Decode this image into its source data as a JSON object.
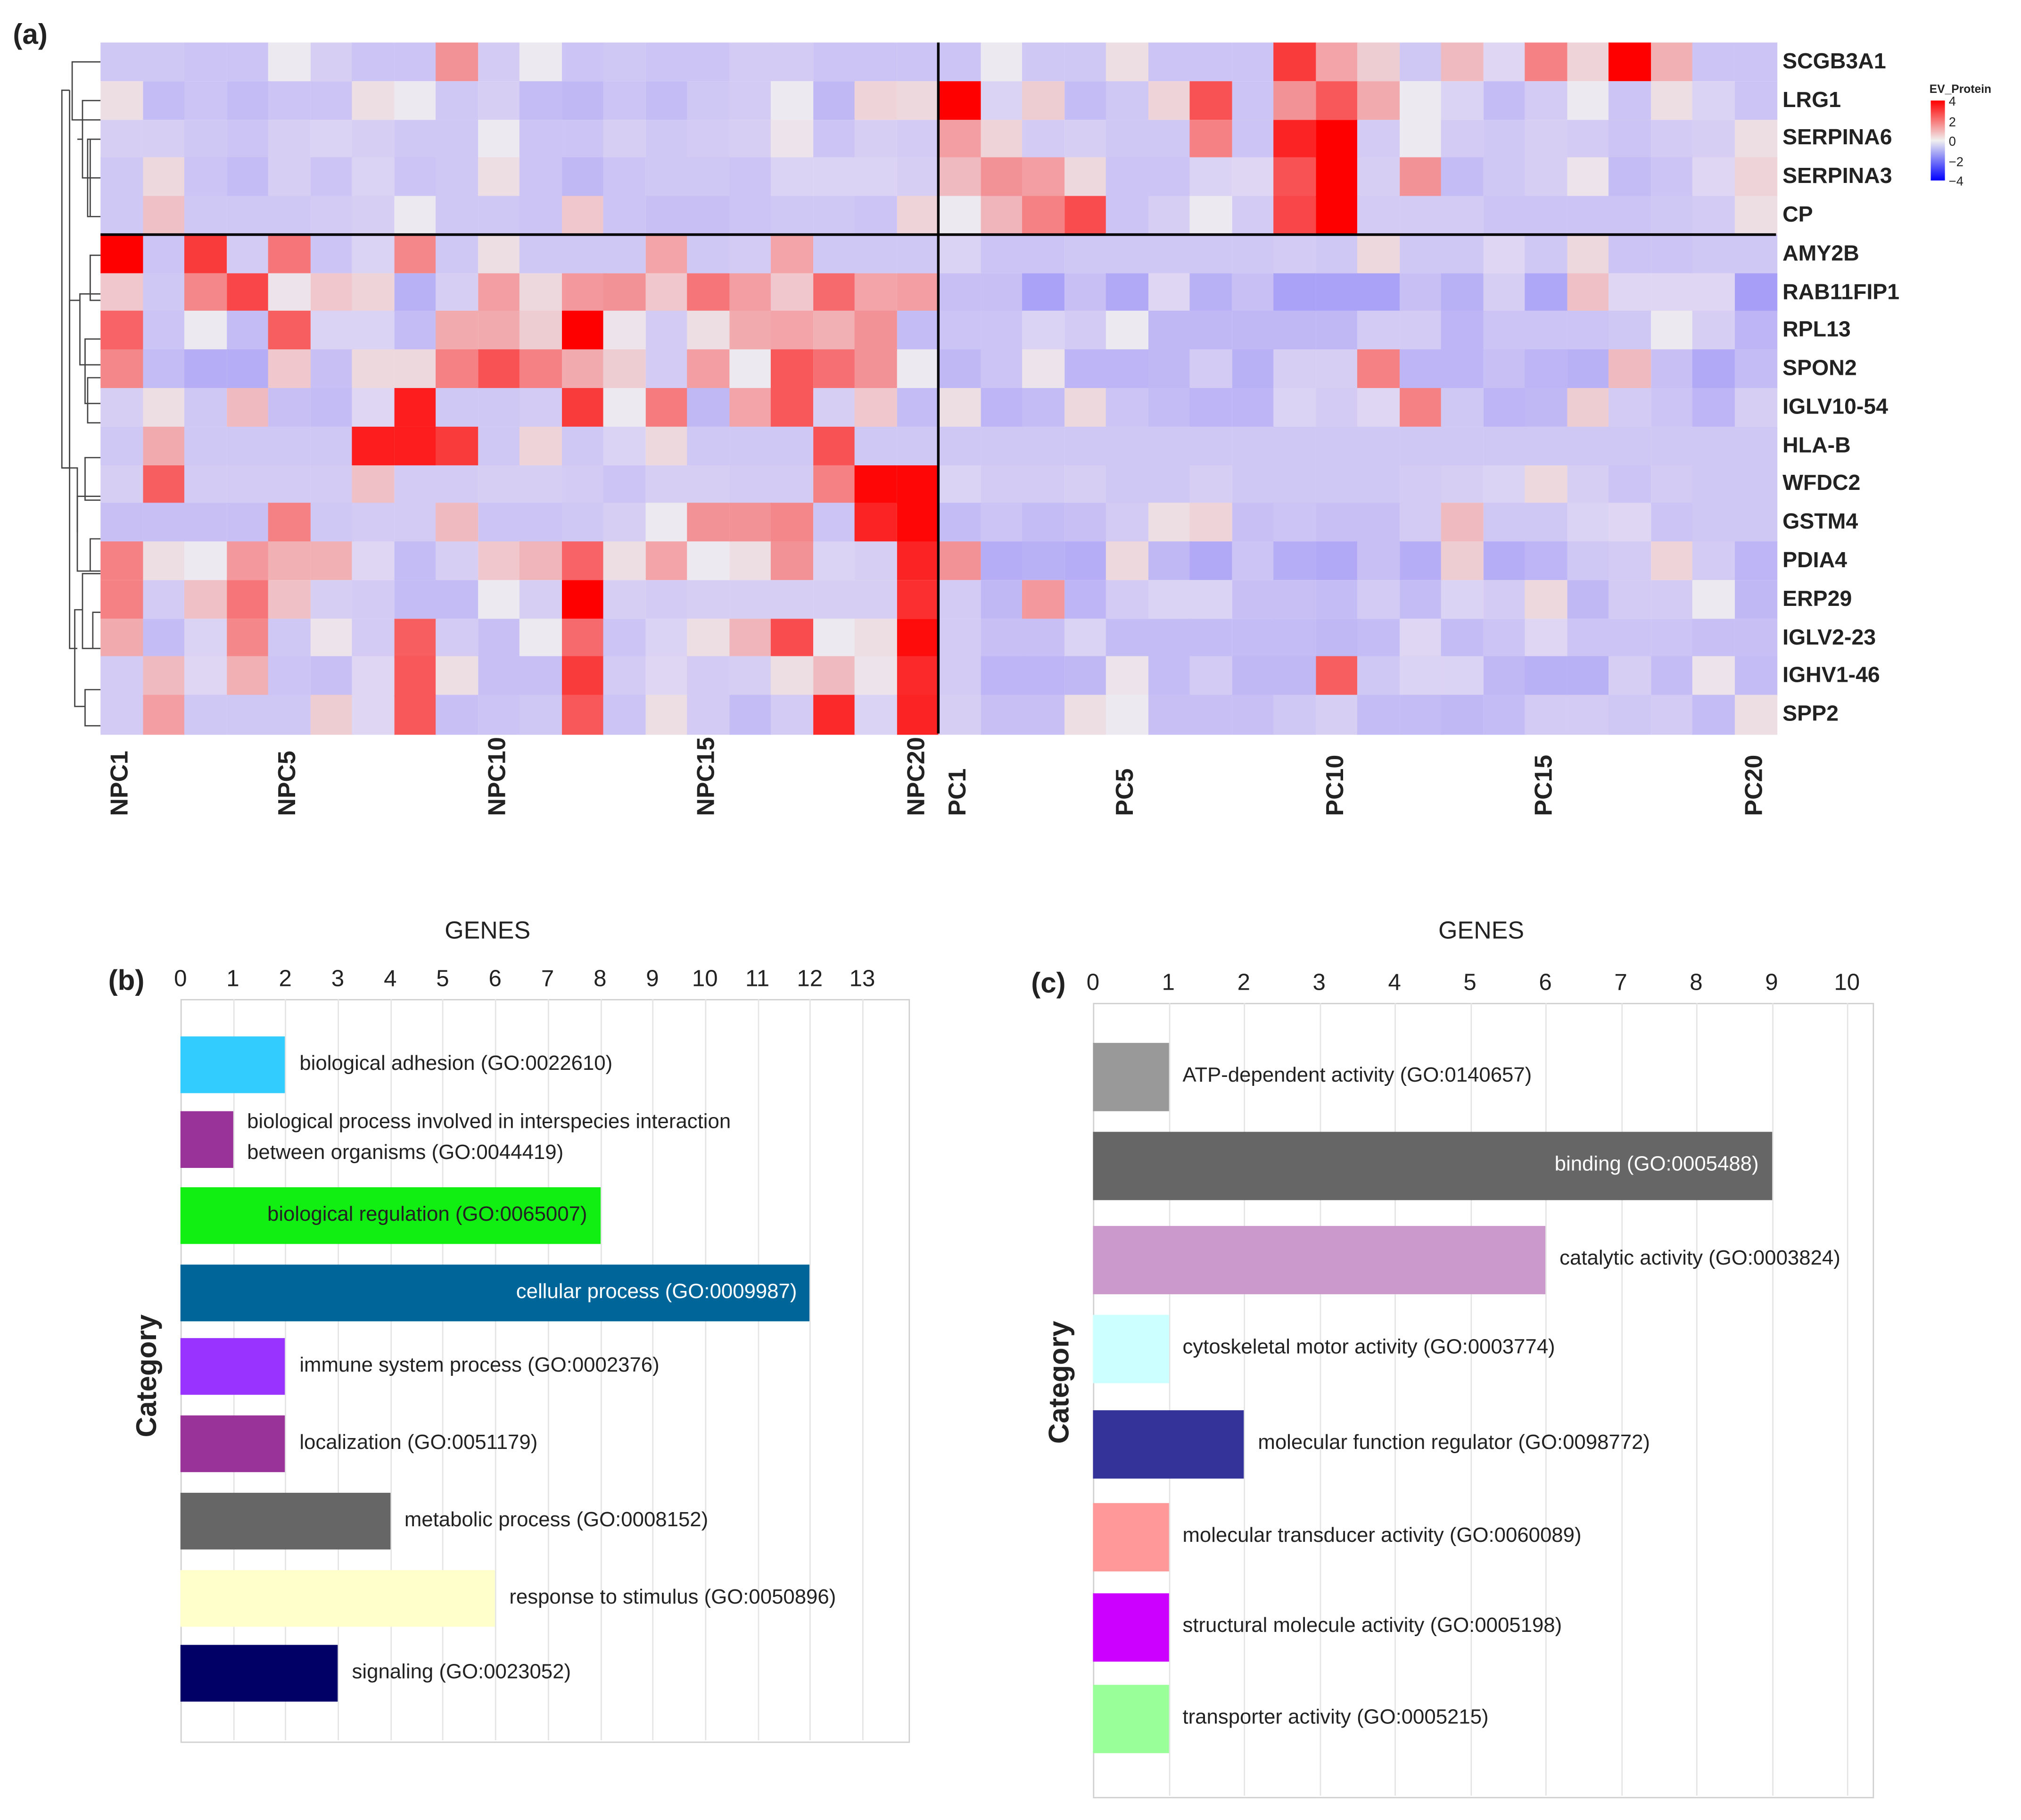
{
  "panels": {
    "a": "(a)",
    "b": "(b)",
    "c": "(c)"
  },
  "chart_data": [
    {
      "type": "heatmap",
      "title": "",
      "legend": {
        "title": "EV_Protein",
        "ticks": [
          "4",
          "2",
          "0",
          "−2",
          "−4"
        ],
        "range": [
          -4,
          4
        ],
        "colors": {
          "low": "#0000ff",
          "mid": "#f0f0f0",
          "high": "#ff0000"
        },
        "placement": "top-right"
      },
      "column_labels_shown": [
        "NPC1",
        "NPC5",
        "NPC10",
        "NPC15",
        "NPC20",
        "PC1",
        "PC5",
        "PC10",
        "PC15",
        "PC20"
      ],
      "column_label_indices": [
        0,
        4,
        9,
        14,
        19,
        20,
        24,
        29,
        34,
        39
      ],
      "columns": [
        "NPC1",
        "NPC2",
        "NPC3",
        "NPC4",
        "NPC5",
        "NPC6",
        "NPC7",
        "NPC8",
        "NPC9",
        "NPC10",
        "NPC11",
        "NPC12",
        "NPC13",
        "NPC14",
        "NPC15",
        "NPC16",
        "NPC17",
        "NPC18",
        "NPC19",
        "NPC20",
        "PC1",
        "PC2",
        "PC3",
        "PC4",
        "PC5",
        "PC6",
        "PC7",
        "PC8",
        "PC9",
        "PC10",
        "PC11",
        "PC12",
        "PC13",
        "PC14",
        "PC15",
        "PC16",
        "PC17",
        "PC18",
        "PC19",
        "PC20"
      ],
      "rows": [
        "SCGB3A1",
        "LRG1",
        "SERPINA6",
        "SERPINA3",
        "CP",
        "AMY2B",
        "RAB11FIP1",
        "RPL13",
        "SPON2",
        "IGLV10-54",
        "HLA-B",
        "WFDC2",
        "GSTM4",
        "PDIA4",
        "ERP29",
        "IGLV2-23",
        "IGHV1-46",
        "SPP2"
      ],
      "values": [
        [
          -0.5,
          -0.5,
          -0.6,
          -0.6,
          0,
          -0.3,
          -0.6,
          -0.6,
          1.5,
          -0.4,
          0,
          -0.6,
          -0.5,
          -0.6,
          -0.6,
          -0.4,
          -0.4,
          -0.6,
          -0.6,
          -0.6,
          -0.6,
          0,
          -0.5,
          -0.5,
          0.2,
          -0.6,
          -0.6,
          -0.6,
          3,
          1.2,
          0.5,
          -0.5,
          0.8,
          -0.1,
          1.8,
          0.4,
          4,
          1,
          -0.6,
          -0.6
        ],
        [
          0.2,
          -0.8,
          -0.6,
          -0.8,
          -0.6,
          -0.6,
          0.2,
          0,
          -0.5,
          -0.3,
          -0.8,
          -0.9,
          -0.6,
          -0.8,
          -0.5,
          -0.4,
          0,
          -0.9,
          0.4,
          0.3,
          4,
          -0.2,
          0.5,
          -0.8,
          -0.5,
          0.4,
          2.6,
          -0.6,
          1.5,
          2.5,
          1.1,
          0,
          -0.2,
          -0.8,
          -0.4,
          0,
          -0.6,
          0.2,
          -0.2,
          -0.6
        ],
        [
          -0.3,
          -0.3,
          -0.5,
          -0.6,
          -0.3,
          -0.2,
          -0.3,
          -0.5,
          -0.5,
          0,
          -0.6,
          -0.6,
          -0.3,
          -0.5,
          -0.4,
          -0.3,
          0.1,
          -0.6,
          -0.3,
          -0.4,
          1.3,
          0.4,
          -0.4,
          -0.3,
          -0.5,
          -0.5,
          1.8,
          -0.6,
          3.4,
          4,
          -0.4,
          0,
          -0.4,
          -0.5,
          -0.3,
          -0.4,
          -0.6,
          -0.4,
          -0.3,
          0.2
        ],
        [
          -0.5,
          0.3,
          -0.6,
          -0.8,
          -0.3,
          -0.6,
          -0.2,
          -0.6,
          -0.5,
          0.2,
          -0.6,
          -0.9,
          -0.6,
          -0.5,
          -0.5,
          -0.6,
          -0.2,
          -0.2,
          -0.2,
          -0.3,
          0.8,
          1.5,
          1.3,
          0.3,
          -0.6,
          -0.6,
          -0.2,
          -0.1,
          2.6,
          4,
          -0.3,
          1.5,
          -0.8,
          -0.5,
          -0.3,
          0.1,
          -0.8,
          -0.6,
          -0.1,
          0.4
        ],
        [
          -0.5,
          0.7,
          -0.5,
          -0.5,
          -0.5,
          -0.4,
          -0.3,
          0,
          -0.5,
          -0.5,
          -0.6,
          0.6,
          -0.6,
          -0.7,
          -0.7,
          -0.6,
          -0.5,
          -0.5,
          -0.6,
          0.4,
          0,
          0.9,
          1.8,
          2.7,
          -0.6,
          -0.3,
          0,
          -0.4,
          2.8,
          4,
          -0.4,
          -0.4,
          -0.4,
          -0.6,
          -0.6,
          -0.6,
          -0.6,
          -0.5,
          -0.4,
          0.2
        ],
        [
          4,
          -0.6,
          3,
          -0.4,
          2,
          -0.6,
          -0.2,
          1.7,
          -0.5,
          0.2,
          -0.5,
          -0.5,
          -0.5,
          1.2,
          -0.5,
          -0.4,
          1.2,
          -0.5,
          -0.5,
          -0.5,
          -0.2,
          -0.6,
          -0.6,
          -0.5,
          -0.5,
          -0.5,
          -0.5,
          -0.5,
          -0.4,
          -0.5,
          0.3,
          -0.5,
          -0.5,
          -0.1,
          -0.5,
          0.3,
          -0.6,
          -0.6,
          -0.5,
          -0.5
        ],
        [
          0.6,
          -0.5,
          1.7,
          2.8,
          0.1,
          0.6,
          0.4,
          -1.1,
          -0.3,
          1.3,
          0.3,
          1.4,
          1.5,
          0.6,
          2,
          1.3,
          0.6,
          2.2,
          1.2,
          1.3,
          -0.7,
          -0.7,
          -1.5,
          -0.7,
          -1.3,
          -0.1,
          -1.1,
          -0.7,
          -1.5,
          -1.5,
          -1.5,
          -0.7,
          -1.1,
          -0.3,
          -1.4,
          0.7,
          -0.1,
          -0.1,
          -0.1,
          -1.6
        ],
        [
          2.3,
          -0.6,
          0,
          -0.8,
          2.4,
          -0.2,
          -0.2,
          -0.8,
          1.1,
          1.1,
          0.5,
          4,
          0.1,
          -0.4,
          0.2,
          1.1,
          1.2,
          1,
          1.5,
          -0.8,
          -0.6,
          -0.6,
          -0.2,
          -0.4,
          0,
          -0.9,
          -0.9,
          -0.9,
          -0.9,
          -0.9,
          -0.4,
          -0.4,
          -1,
          -0.6,
          -0.6,
          -0.6,
          -0.5,
          0,
          -0.3,
          -1
        ],
        [
          1.7,
          -0.8,
          -1.2,
          -1.2,
          0.6,
          -0.7,
          0.3,
          0.3,
          1.8,
          2.6,
          1.8,
          1.1,
          0.5,
          -0.4,
          1.3,
          0,
          2.5,
          2.1,
          1.5,
          0,
          -0.9,
          -0.6,
          0.1,
          -1,
          -1,
          -0.9,
          -0.4,
          -1.1,
          -0.3,
          -0.3,
          1.8,
          -1,
          -1,
          -0.7,
          -1,
          -1.1,
          0.8,
          -0.7,
          -1.3,
          -0.8
        ],
        [
          -0.3,
          0.2,
          -0.5,
          0.8,
          -0.7,
          -0.8,
          -0.1,
          3.5,
          -0.5,
          -0.5,
          -0.4,
          3,
          0,
          1.9,
          -0.9,
          1.2,
          2.5,
          -0.3,
          0.6,
          -0.8,
          0.2,
          -1,
          -0.8,
          0.3,
          -0.6,
          -0.8,
          -1,
          -1,
          -0.2,
          -0.4,
          -0.1,
          1.8,
          -0.5,
          -1,
          -0.9,
          0.5,
          -0.4,
          -0.6,
          -1,
          -0.3
        ],
        [
          -0.5,
          1.1,
          -0.5,
          -0.5,
          -0.5,
          -0.5,
          3.5,
          3.5,
          3,
          -0.5,
          0.4,
          -0.5,
          -0.2,
          0.3,
          -0.5,
          -0.5,
          -0.5,
          2.6,
          -0.5,
          -0.5,
          -0.5,
          -0.5,
          -0.5,
          -0.5,
          -0.5,
          -0.5,
          -0.5,
          -0.5,
          -0.5,
          -0.5,
          -0.5,
          -0.5,
          -0.5,
          -0.5,
          -0.5,
          -0.5,
          -0.5,
          -0.5,
          -0.5,
          -0.5
        ],
        [
          -0.3,
          2.4,
          -0.4,
          -0.4,
          -0.4,
          -0.4,
          0.7,
          -0.4,
          -0.4,
          -0.3,
          -0.3,
          -0.4,
          -0.6,
          -0.3,
          -0.3,
          -0.4,
          -0.4,
          1.8,
          3.9,
          3.9,
          -0.2,
          -0.4,
          -0.4,
          -0.3,
          -0.5,
          -0.5,
          -0.3,
          -0.5,
          -0.5,
          -0.5,
          -0.5,
          -0.4,
          -0.3,
          -0.2,
          0.3,
          -0.3,
          -0.6,
          -0.4,
          -0.5,
          -0.5
        ],
        [
          -0.7,
          -0.7,
          -0.7,
          -0.7,
          1.8,
          -0.5,
          -0.4,
          -0.4,
          0.8,
          -0.6,
          -0.6,
          -0.5,
          -0.3,
          0,
          1.5,
          1.5,
          1.7,
          -0.6,
          3.4,
          3.9,
          -0.8,
          -0.6,
          -0.8,
          -0.7,
          -0.4,
          0.2,
          0.4,
          -0.7,
          -0.6,
          -0.7,
          -0.7,
          -0.4,
          0.8,
          -0.5,
          -0.5,
          -0.2,
          -0.1,
          -0.6,
          -0.5,
          -0.5
        ],
        [
          1.8,
          0.2,
          0,
          1.4,
          1,
          1,
          -0.1,
          -0.8,
          -0.3,
          0.6,
          0.9,
          2.3,
          0.2,
          1.2,
          0,
          0.2,
          1.5,
          -0.2,
          -0.3,
          3.4,
          1.5,
          -1.2,
          -1.1,
          -1.2,
          0.3,
          -0.9,
          -1.3,
          -0.6,
          -1.2,
          -1.3,
          -0.7,
          -1.2,
          0.5,
          -1.2,
          -1,
          -0.5,
          -0.4,
          0.4,
          -0.4,
          -1
        ],
        [
          1.8,
          -0.4,
          0.7,
          2,
          0.7,
          -0.3,
          -0.4,
          -0.8,
          -0.8,
          0,
          -0.3,
          4,
          -0.3,
          -0.4,
          -0.3,
          -0.3,
          -0.3,
          -0.3,
          -0.3,
          3.2,
          -0.4,
          -0.9,
          1.4,
          -1,
          -0.4,
          -0.2,
          -0.2,
          -0.7,
          -0.7,
          -0.8,
          -0.4,
          -0.8,
          -0.2,
          -0.4,
          0.3,
          -0.9,
          -0.4,
          -0.4,
          0,
          -0.9
        ],
        [
          1.1,
          -0.8,
          -0.2,
          1.7,
          -0.5,
          0.1,
          -0.4,
          2.4,
          -0.4,
          -0.7,
          0,
          2.2,
          -0.6,
          -0.2,
          0.2,
          0.9,
          2.7,
          0,
          0.2,
          3.8,
          -0.4,
          -0.7,
          -0.7,
          -0.2,
          -0.8,
          -0.8,
          -0.8,
          -0.8,
          -0.8,
          -0.9,
          -0.8,
          -0.1,
          -0.8,
          -0.6,
          -0.1,
          -0.6,
          -0.6,
          -0.6,
          -0.7,
          -0.7
        ],
        [
          -0.4,
          0.8,
          -0.1,
          1,
          -0.6,
          -0.7,
          -0.1,
          2.5,
          0.2,
          -0.7,
          -0.7,
          3,
          -0.4,
          -0.1,
          -0.4,
          -0.3,
          0.2,
          0.8,
          0.1,
          3.3,
          -0.4,
          -1,
          -1,
          -0.9,
          0.1,
          -0.8,
          -0.4,
          -0.9,
          -0.9,
          2.4,
          -0.5,
          -0.2,
          -0.2,
          -0.9,
          -1.1,
          -1.1,
          -0.3,
          -0.8,
          0.1,
          -0.8
        ],
        [
          -0.4,
          1.3,
          -0.5,
          -0.5,
          -0.5,
          0.5,
          -0.1,
          2.5,
          -0.7,
          -0.6,
          -0.5,
          2.5,
          -0.6,
          0.2,
          -0.4,
          -0.8,
          -0.4,
          3.3,
          -0.2,
          3.4,
          -0.3,
          -0.7,
          -0.7,
          0.2,
          0,
          -0.7,
          -0.7,
          -0.7,
          -0.5,
          -0.3,
          -0.8,
          -0.8,
          -0.9,
          -0.8,
          -0.4,
          -0.4,
          -0.5,
          -0.4,
          -0.8,
          0.2
        ]
      ],
      "row_split_after": 5,
      "column_split_after": 20
    },
    {
      "type": "bar",
      "orientation": "horizontal",
      "xlabel": "GENES",
      "ylabel": "Category",
      "xlim": [
        0,
        13
      ],
      "x_ticks": [
        "0",
        "1",
        "2",
        "3",
        "4",
        "5",
        "6",
        "7",
        "8",
        "9",
        "10",
        "11",
        "12",
        "13"
      ],
      "grid": true,
      "categories": [
        "biological adhesion (GO:0022610)",
        "biological process involved in interspecies interaction between organisms (GO:0044419)",
        "biological regulation (GO:0065007)",
        "cellular process (GO:0009987)",
        "immune system process (GO:0002376)",
        "localization (GO:0051179)",
        "metabolic process (GO:0008152)",
        "response to stimulus (GO:0050896)",
        "signaling (GO:0023052)"
      ],
      "values": [
        2,
        1,
        8,
        12,
        2,
        2,
        4,
        6,
        3
      ],
      "colors": [
        "#33ccff",
        "#993399",
        "#11ee11",
        "#006699",
        "#9933ff",
        "#993399",
        "#666666",
        "#ffffcc",
        "#000066"
      ]
    },
    {
      "type": "bar",
      "orientation": "horizontal",
      "xlabel": "GENES",
      "ylabel": "Category",
      "xlim": [
        0,
        10
      ],
      "x_ticks": [
        "0",
        "1",
        "2",
        "3",
        "4",
        "5",
        "6",
        "7",
        "8",
        "9",
        "10"
      ],
      "grid": true,
      "categories": [
        "ATP-dependent activity (GO:0140657)",
        "binding (GO:0005488)",
        "catalytic activity (GO:0003824)",
        "cytoskeletal motor activity (GO:0003774)",
        "molecular function regulator (GO:0098772)",
        "molecular transducer activity (GO:0060089)",
        "structural molecule activity (GO:0005198)",
        "transporter activity (GO:0005215)"
      ],
      "values": [
        1,
        9,
        6,
        1,
        2,
        1,
        1,
        1
      ],
      "colors": [
        "#999999",
        "#666666",
        "#cc99cc",
        "#ccffff",
        "#333399",
        "#ff9999",
        "#cc00ff",
        "#99ff99"
      ]
    }
  ]
}
